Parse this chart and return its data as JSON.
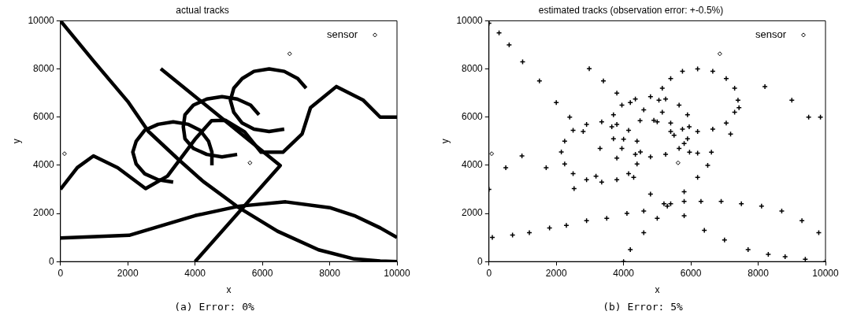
{
  "chart_data": [
    {
      "type": "scatter",
      "title": "actual tracks",
      "xlabel": "x",
      "ylabel": "y",
      "xlim": [
        0,
        10000
      ],
      "ylim": [
        0,
        10000
      ],
      "xticks": [
        0,
        2000,
        4000,
        6000,
        8000,
        10000
      ],
      "yticks": [
        0,
        2000,
        4000,
        6000,
        8000,
        10000
      ],
      "grid": false,
      "legend": "top right",
      "annotations": [
        "(a) Error: 0%"
      ],
      "series": [
        {
          "type": "line",
          "marker": "none",
          "color": "#000000",
          "x": [
            0,
            1000,
            2000,
            2610,
            3500,
            4240,
            5300,
            6450,
            7670,
            8730,
            9500,
            10000
          ],
          "values": [
            10000,
            8300,
            6650,
            5410,
            4250,
            3330,
            2240,
            1260,
            490,
            110,
            20,
            0
          ]
        },
        {
          "type": "line",
          "marker": "none",
          "color": "#000000",
          "x": [
            0,
            2040,
            4000,
            5300,
            6690,
            8000,
            8730,
            9500,
            10000
          ],
          "values": [
            980,
            1090,
            1910,
            2300,
            2480,
            2240,
            1910,
            1400,
            1000
          ]
        },
        {
          "type": "line",
          "marker": "none",
          "color": "#000000",
          "x": [
            2980,
            6530,
            4000
          ],
          "values": [
            8010,
            3990,
            0
          ]
        },
        {
          "type": "line",
          "marker": "none",
          "color": "#000000",
          "x": [
            0,
            500,
            980,
            1700,
            2530,
            3180,
            4000,
            4490,
            4900,
            5470,
            5960,
            6610,
            7180,
            7430,
            8200,
            9000,
            9500,
            10000
          ],
          "values": [
            3000,
            3900,
            4390,
            3900,
            3030,
            3550,
            5080,
            5850,
            5870,
            5390,
            4540,
            4540,
            5300,
            6390,
            7270,
            6700,
            6000,
            6000
          ]
        },
        {
          "type": "line",
          "marker": "none",
          "color": "#000000",
          "x": [
            4500,
            4500,
            4400,
            4150,
            3800,
            3350,
            2900,
            2500,
            2250,
            2150,
            2250,
            2500,
            2900,
            3350
          ],
          "values": [
            4000,
            4550,
            5000,
            5450,
            5700,
            5800,
            5700,
            5450,
            5000,
            4550,
            4050,
            3650,
            3400,
            3300
          ]
        },
        {
          "type": "line",
          "marker": "none",
          "color": "#000000",
          "x": [
            5900,
            5650,
            5250,
            4800,
            4350,
            3950,
            3700,
            3650,
            3700,
            3950,
            4350,
            4800,
            5250
          ],
          "values": [
            6100,
            6500,
            6750,
            6850,
            6750,
            6500,
            6100,
            5600,
            5100,
            4700,
            4450,
            4350,
            4450
          ]
        },
        {
          "type": "line",
          "marker": "none",
          "color": "#000000",
          "x": [
            7300,
            7050,
            6650,
            6200,
            5750,
            5400,
            5150,
            5050,
            5150,
            5400,
            5750,
            6200,
            6650
          ],
          "values": [
            7200,
            7600,
            7900,
            8000,
            7900,
            7600,
            7200,
            6700,
            6200,
            5750,
            5500,
            5400,
            5500
          ]
        },
        {
          "name": "sensor",
          "marker": "diamond",
          "color": "#000000",
          "x": [
            120,
            6810,
            5630
          ],
          "values": [
            4480,
            8630,
            4100
          ]
        }
      ]
    },
    {
      "type": "scatter",
      "title": "estimated tracks (observation error: +-0.5%)",
      "xlabel": "x",
      "ylabel": "y",
      "xlim": [
        0,
        10000
      ],
      "ylim": [
        0,
        10000
      ],
      "xticks": [
        0,
        2000,
        4000,
        6000,
        8000,
        10000
      ],
      "yticks": [
        0,
        2000,
        4000,
        6000,
        8000,
        10000
      ],
      "grid": false,
      "legend": "top right",
      "annotations": [
        "(b) Error: 5%"
      ],
      "series": [
        {
          "marker": "cross",
          "color": "#000000",
          "x": [
            0,
            300,
            600,
            1000,
            1500,
            2000,
            2400,
            2800,
            3300,
            3800,
            4300,
            4800,
            5300,
            5800,
            6400,
            7000,
            7700,
            8300,
            8800,
            9400,
            10000
          ],
          "values": [
            9900,
            9500,
            9000,
            8300,
            7500,
            6600,
            6000,
            5400,
            4700,
            4300,
            3500,
            2800,
            2300,
            1900,
            1300,
            900,
            500,
            300,
            200,
            100,
            0
          ]
        },
        {
          "marker": "cross",
          "color": "#000000",
          "x": [
            100,
            700,
            1200,
            1800,
            2300,
            2900,
            3500,
            4100,
            4600,
            5200,
            5800,
            6300,
            6900,
            7500,
            8100,
            8700,
            9300,
            9800
          ],
          "values": [
            1000,
            1100,
            1200,
            1400,
            1500,
            1700,
            1800,
            2000,
            2100,
            2400,
            2500,
            2500,
            2500,
            2400,
            2300,
            2100,
            1700,
            1200
          ]
        },
        {
          "marker": "cross",
          "color": "#000000",
          "x": [
            2980,
            3400,
            3800,
            4200,
            4600,
            5000,
            5400,
            5800,
            6200,
            6500,
            6200,
            5800,
            5400,
            5000,
            4600,
            4200,
            4000
          ],
          "values": [
            8010,
            7500,
            7000,
            6600,
            6300,
            5800,
            5400,
            4900,
            4500,
            4000,
            3500,
            2900,
            2400,
            1800,
            1200,
            500,
            0
          ]
        },
        {
          "marker": "cross",
          "color": "#000000",
          "x": [
            0,
            500,
            980,
            1700,
            2530,
            3180,
            4000,
            4490,
            4900,
            5500,
            5960,
            6610,
            7180,
            7430,
            8200,
            9000,
            9500,
            9850
          ],
          "values": [
            3000,
            3900,
            4390,
            3900,
            3030,
            3550,
            5080,
            5850,
            5870,
            5250,
            4540,
            4540,
            5300,
            6390,
            7270,
            6700,
            6000,
            6000
          ]
        },
        {
          "marker": "cross",
          "color": "#000000",
          "x": [
            4500,
            4400,
            4150,
            3800,
            3350,
            2900,
            2500,
            2250,
            2150,
            2250,
            2500,
            2900,
            3350,
            3800,
            4150,
            4400
          ],
          "values": [
            4550,
            5000,
            5450,
            5700,
            5800,
            5700,
            5450,
            5000,
            4550,
            4050,
            3650,
            3400,
            3300,
            3400,
            3650,
            4050
          ]
        },
        {
          "marker": "cross",
          "color": "#000000",
          "x": [
            5950,
            5900,
            5650,
            5250,
            4800,
            4350,
            3950,
            3700,
            3650,
            3700,
            3950,
            4350,
            4800,
            5250,
            5650,
            5900
          ],
          "values": [
            5600,
            6100,
            6500,
            6750,
            6850,
            6750,
            6500,
            6100,
            5600,
            5100,
            4700,
            4450,
            4350,
            4450,
            4700,
            5100
          ]
        },
        {
          "marker": "cross",
          "color": "#000000",
          "x": [
            7400,
            7300,
            7050,
            6650,
            6200,
            5750,
            5400,
            5150,
            5050,
            5150,
            5400,
            5750,
            6200,
            6650,
            7050,
            7300
          ],
          "values": [
            6700,
            7200,
            7600,
            7900,
            8000,
            7900,
            7600,
            7200,
            6700,
            6200,
            5750,
            5500,
            5400,
            5500,
            5750,
            6200
          ]
        },
        {
          "name": "sensor",
          "marker": "diamond",
          "color": "#000000",
          "x": [
            80,
            6860,
            5620
          ],
          "values": [
            4480,
            8630,
            4100
          ]
        }
      ]
    }
  ]
}
